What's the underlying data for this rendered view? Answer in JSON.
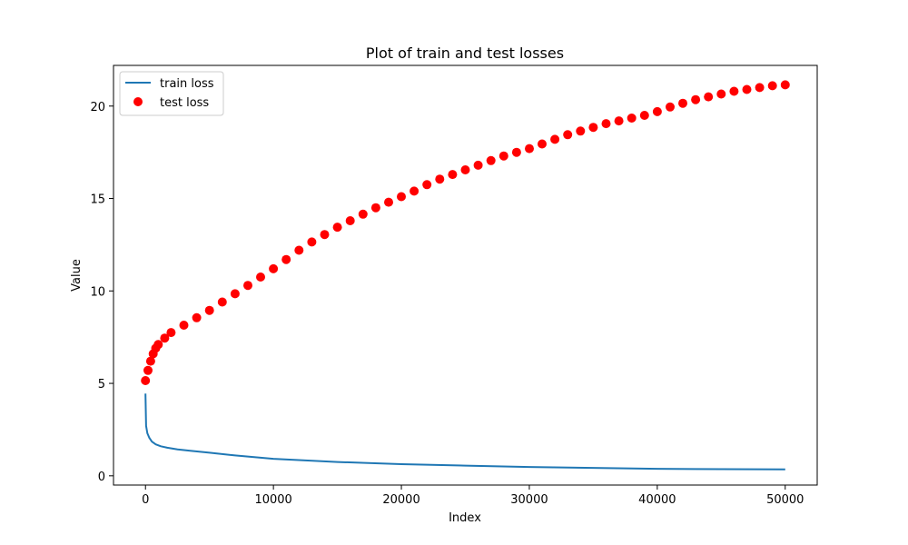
{
  "chart_data": {
    "type": "line",
    "title": "Plot of train and test losses",
    "xlabel": "Index",
    "ylabel": "Value",
    "xlim": [
      -2500,
      52500
    ],
    "ylim": [
      -0.5,
      22.2
    ],
    "xticks": [
      0,
      10000,
      20000,
      30000,
      40000,
      50000
    ],
    "yticks": [
      0,
      5,
      10,
      15,
      20
    ],
    "legend_position": "top-left",
    "grid": false,
    "series": [
      {
        "name": "train loss",
        "kind": "line",
        "color": "#1f77b4",
        "x": [
          0,
          50,
          150,
          300,
          500,
          800,
          1200,
          1700,
          2500,
          3500,
          5000,
          7000,
          10000,
          15000,
          20000,
          25000,
          30000,
          35000,
          40000,
          45000,
          50000
        ],
        "y": [
          4.45,
          2.7,
          2.3,
          2.05,
          1.85,
          1.7,
          1.6,
          1.52,
          1.43,
          1.35,
          1.25,
          1.1,
          0.92,
          0.75,
          0.63,
          0.55,
          0.48,
          0.43,
          0.38,
          0.36,
          0.35
        ]
      },
      {
        "name": "test loss",
        "kind": "scatter",
        "color": "#ff0000",
        "x": [
          0,
          200,
          400,
          600,
          800,
          1000,
          1500,
          2000,
          3000,
          4000,
          5000,
          6000,
          7000,
          8000,
          9000,
          10000,
          11000,
          12000,
          13000,
          14000,
          15000,
          16000,
          17000,
          18000,
          19000,
          20000,
          21000,
          22000,
          23000,
          24000,
          25000,
          26000,
          27000,
          28000,
          29000,
          30000,
          31000,
          32000,
          33000,
          34000,
          35000,
          36000,
          37000,
          38000,
          39000,
          40000,
          41000,
          42000,
          43000,
          44000,
          45000,
          46000,
          47000,
          48000,
          49000,
          50000
        ],
        "y": [
          5.15,
          5.7,
          6.2,
          6.6,
          6.9,
          7.1,
          7.45,
          7.75,
          8.15,
          8.55,
          8.95,
          9.4,
          9.85,
          10.3,
          10.75,
          11.2,
          11.7,
          12.2,
          12.65,
          13.05,
          13.45,
          13.8,
          14.15,
          14.5,
          14.8,
          15.1,
          15.4,
          15.75,
          16.05,
          16.3,
          16.55,
          16.8,
          17.05,
          17.3,
          17.5,
          17.7,
          17.95,
          18.2,
          18.45,
          18.65,
          18.85,
          19.05,
          19.2,
          19.35,
          19.5,
          19.7,
          19.95,
          20.15,
          20.35,
          20.5,
          20.65,
          20.8,
          20.9,
          21.0,
          21.1,
          21.15
        ]
      }
    ]
  }
}
